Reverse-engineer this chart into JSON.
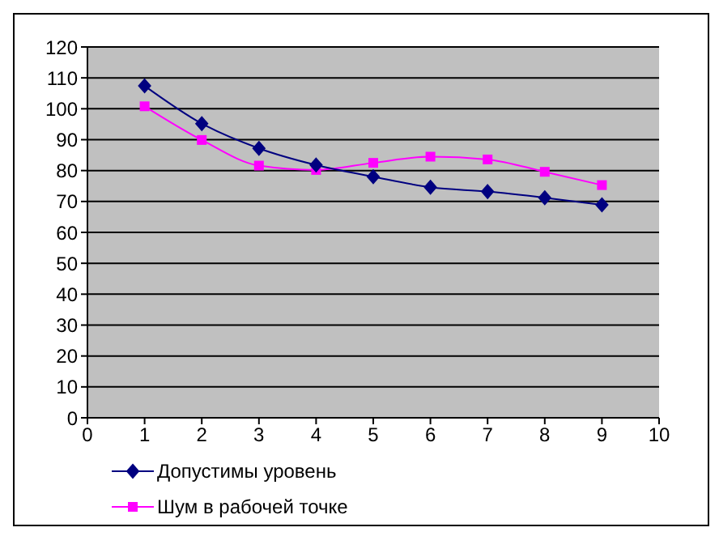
{
  "chart_data": {
    "type": "line",
    "x": [
      1,
      2,
      3,
      4,
      5,
      6,
      7,
      8,
      9
    ],
    "series": [
      {
        "name": "Допустимы уровень",
        "color": "#000080",
        "marker": "diamond",
        "values": [
          107.4,
          95.2,
          87.2,
          81.8,
          78.0,
          74.6,
          73.2,
          71.2,
          68.9
        ]
      },
      {
        "name": "Шум в рабочей точке",
        "color": "#ff00ff",
        "marker": "square",
        "values": [
          100.8,
          89.9,
          81.6,
          80.2,
          82.5,
          84.5,
          83.6,
          79.6,
          75.3
        ]
      }
    ],
    "xlim": [
      0,
      10
    ],
    "xticks": [
      0,
      1,
      2,
      3,
      4,
      5,
      6,
      7,
      8,
      9,
      10
    ],
    "ylim": [
      0,
      120
    ],
    "yticks": [
      0,
      10,
      20,
      30,
      40,
      50,
      60,
      70,
      80,
      90,
      100,
      110,
      120
    ],
    "grid": "y",
    "legend": "bottom",
    "line_style": "solid"
  }
}
